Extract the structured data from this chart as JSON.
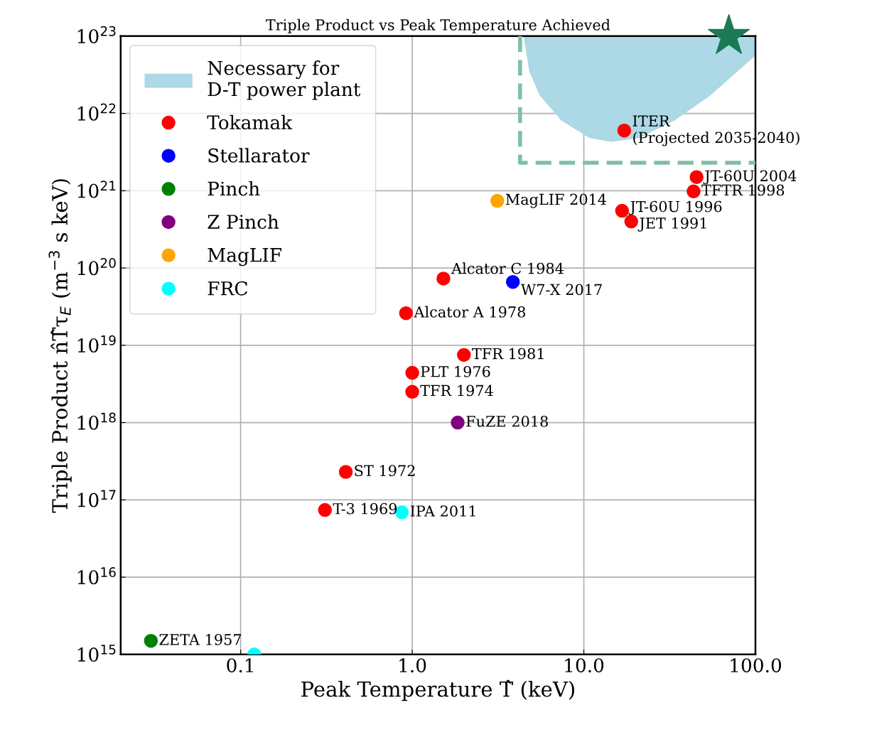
{
  "chart_data": {
    "type": "scatter",
    "title": "Triple Product vs Peak Temperature Achieved",
    "xlabel": "Peak Temperature T̂ (keV)",
    "ylabel": "Triple Product n̂T̂τ$_{E}$ (m$^{−3}$ s keV)",
    "log": "xy",
    "xlim": [
      0.02,
      100
    ],
    "ylim": [
      1000000000000000.0,
      1e+23
    ],
    "xticks": [
      {
        "value": 0.1,
        "label": "0.1"
      },
      {
        "value": 1,
        "label": "1.0"
      },
      {
        "value": 10,
        "label": "10.0"
      },
      {
        "value": 100,
        "label": "100.0"
      }
    ],
    "yticks": [
      {
        "value": 1000000000000000.0,
        "label": "10$^{15}$"
      },
      {
        "value": 1e+16,
        "label": "10$^{16}$"
      },
      {
        "value": 1e+17,
        "label": "10$^{17}$"
      },
      {
        "value": 1e+18,
        "label": "10$^{18}$"
      },
      {
        "value": 1e+19,
        "label": "10$^{19}$"
      },
      {
        "value": 1e+20,
        "label": "10$^{20}$"
      },
      {
        "value": 1e+21,
        "label": "10$^{21}$"
      },
      {
        "value": 1e+22,
        "label": "10$^{22}$"
      },
      {
        "value": 1e+23,
        "label": "10$^{23}$"
      }
    ],
    "grid": true,
    "legend": "top left",
    "marker": "circle",
    "series": [
      {
        "type": "area",
        "name": "Necessary for\nD-T power plant",
        "color": "#add8e6",
        "marker": "none",
        "x": [
          4.46,
          4.81,
          5.54,
          7.38,
          10.8,
          14.4,
          21.0,
          33.8,
          54.5,
          100,
          100
        ],
        "values": [
          1e+23,
          3.5e+22,
          1.7e+22,
          8.1e+21,
          4.8e+21,
          4.3e+21,
          4.8e+21,
          8.1e+21,
          1.7e+22,
          5.6e+22,
          1e+23
        ]
      },
      {
        "name": "Tokamak",
        "color": "#ff0000",
        "x": [
          0.31,
          0.41,
          1.0,
          1.0,
          2.0,
          0.92,
          1.52,
          16.7,
          18.9,
          43.6,
          45.4,
          17.2
        ],
        "values": [
          7.4e+16,
          2.3e+17,
          2.5e+18,
          4.4e+18,
          7.5e+18,
          2.6e+19,
          7.3e+19,
          5.5e+20,
          4e+20,
          9.8e+20,
          1.5e+21,
          6e+21
        ]
      },
      {
        "name": "Stellarator",
        "color": "#0000ff",
        "x": [
          3.86
        ],
        "values": [
          6.6e+19
        ]
      },
      {
        "name": "Pinch",
        "color": "#008000",
        "x": [
          0.03
        ],
        "values": [
          1500000000000000.0
        ]
      },
      {
        "name": "Z Pinch",
        "color": "#800080",
        "x": [
          1.84
        ],
        "values": [
          1e+18
        ]
      },
      {
        "name": "MagLIF",
        "color": "#ffa500",
        "x": [
          3.13
        ],
        "values": [
          7.4e+20
        ]
      },
      {
        "name": "FRC",
        "color": "#00ffff",
        "x": [
          0.87,
          0.12
        ],
        "values": [
          6.9e+16,
          1000000000000000.0
        ]
      },
      {
        "color": "#1b7a55",
        "marker": "star",
        "x": [
          70
        ],
        "values": [
          1e+23
        ]
      },
      {
        "type": "line",
        "color": "#7fbfa5",
        "line_style": "dashed",
        "marker": "none",
        "x": [
          4.25,
          4.25,
          100
        ],
        "values": [
          1e+23,
          2.3e+21,
          2.3e+21
        ]
      }
    ],
    "annotations": [
      {
        "text": "ZETA 1957",
        "x": 0.03,
        "y": 1500000000000000.0
      },
      {
        "text": "T-3 1969",
        "x": 0.31,
        "y": 7.4e+16
      },
      {
        "text": "IPA 2011",
        "x": 0.87,
        "y": 6.9e+16
      },
      {
        "text": "ST 1972",
        "x": 0.41,
        "y": 2.3e+17
      },
      {
        "text": "FuZE 2018",
        "x": 1.84,
        "y": 1e+18
      },
      {
        "text": "TFR 1974",
        "x": 1.0,
        "y": 2.5e+18
      },
      {
        "text": "PLT 1976",
        "x": 1.0,
        "y": 4.4e+18
      },
      {
        "text": "TFR 1981",
        "x": 2.0,
        "y": 7.5e+18
      },
      {
        "text": "Alcator A 1978",
        "x": 0.92,
        "y": 2.6e+19
      },
      {
        "text": "Alcator C 1984",
        "x": 1.52,
        "y": 7.3e+19
      },
      {
        "text": "W7-X 2017",
        "x": 3.86,
        "y": 6.6e+19
      },
      {
        "text": "MagLIF 2014",
        "x": 3.13,
        "y": 7.4e+20
      },
      {
        "text": "JT-60U 1996",
        "x": 16.7,
        "y": 5.5e+20
      },
      {
        "text": "JET 1991",
        "x": 18.9,
        "y": 4e+20
      },
      {
        "text": "TFTR 1998",
        "x": 43.6,
        "y": 9.8e+20
      },
      {
        "text": "JT-60U 2004",
        "x": 45.4,
        "y": 1.5e+21
      },
      {
        "text": "ITER\n(Projected 2035-2040)",
        "x": 17.2,
        "y": 6e+21
      }
    ]
  }
}
